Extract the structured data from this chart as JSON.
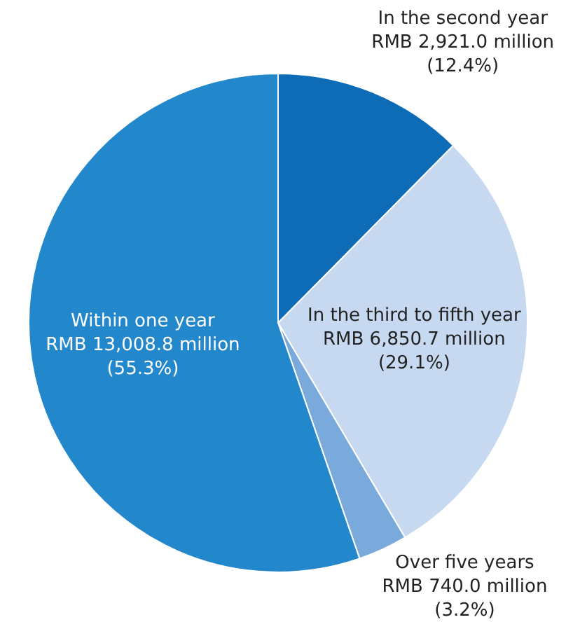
{
  "chart_data": {
    "type": "pie",
    "categories": [
      "In the second year\nRMB 2,921.0 million",
      "In the third to fifth year\nRMB 6,850.7 million",
      "Over five years\nRMB 740.0 million",
      "Within one year\nRMB 13,008.8 million"
    ],
    "values": [
      12.4,
      29.1,
      3.2,
      55.3
    ],
    "colors": [
      "#0d6cb5",
      "#c6d9f0",
      "#7aaadb",
      "#2387cc"
    ],
    "value_labels": [
      "(12.4%)",
      "(29.1%)",
      "(3.2%)",
      "(55.3%)"
    ]
  }
}
